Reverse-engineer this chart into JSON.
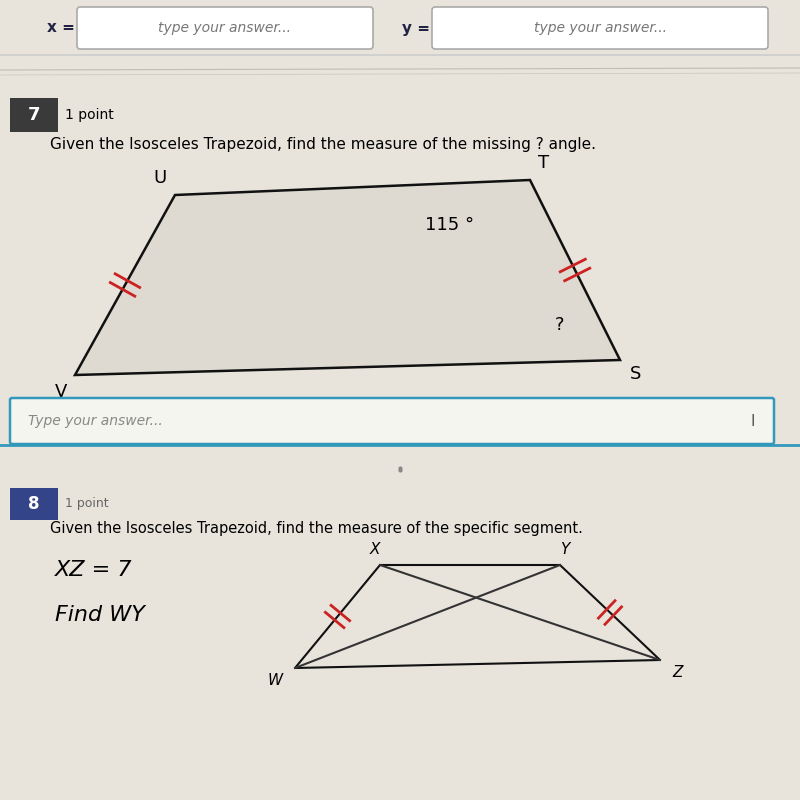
{
  "page_bg": "#e8e4dc",
  "top_box_color": "#ffffff",
  "top_box_border": "#aaaaaa",
  "q7_number": "7",
  "q7_number_bg": "#3a3a3a",
  "q7_points": "1 point",
  "q7_text": "Given the Isosceles Trapezoid, find the measure of the missing ? angle.",
  "q7_angle_label": "115 °",
  "q7_question_label": "?",
  "trap_label_U": "U",
  "trap_label_T": "T",
  "trap_label_S": "S",
  "trap_label_V": "V",
  "tick_color": "#cc2222",
  "trap_line_color": "#111111",
  "trap_bg_color": "#dedad2",
  "answer_placeholder": "Type your answer...",
  "answer_border": "#3399bb",
  "q8_number": "8",
  "q8_number_bg": "#334488",
  "q8_points": "1 point",
  "q8_text": "Given the Isosceles Trapezoid, find the measure of the specific segment.",
  "q8_xz_text": "XZ = 7",
  "q8_find_text": "Find WY",
  "q8_label_X": "X",
  "q8_label_Y": "Y",
  "q8_label_W": "W",
  "q8_label_Z": "Z",
  "cursor_label": "I",
  "x_label_text": "x =",
  "y_label_text": "y ="
}
